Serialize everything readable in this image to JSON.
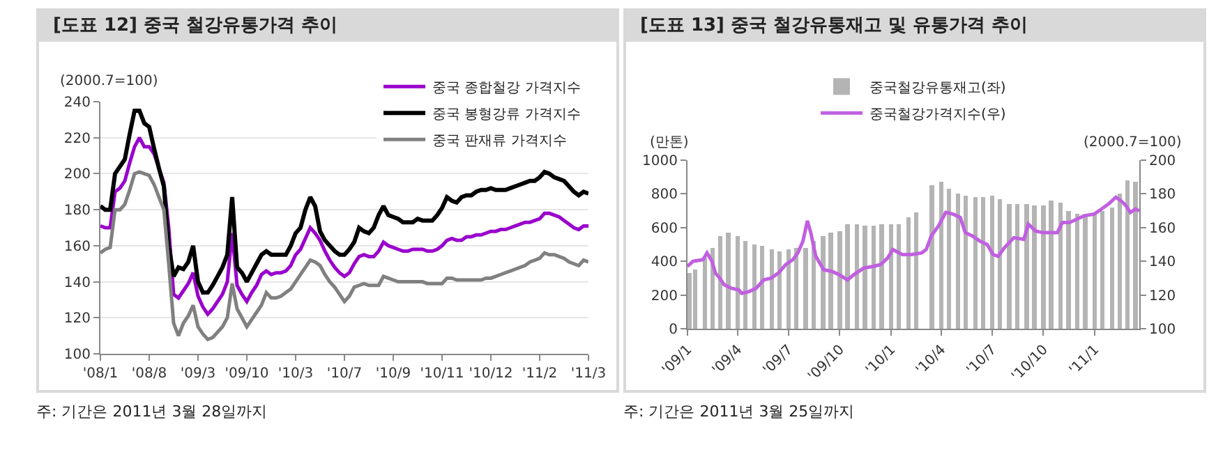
{
  "chart_data": [
    {
      "type": "line",
      "title": "[도표 12] 중국 철강유통가격 추이",
      "ylabel": "(2000.7=100)",
      "categories": [
        "'08/1",
        null,
        null,
        null,
        null,
        null,
        null,
        null,
        null,
        null,
        "'08/8",
        null,
        null,
        null,
        null,
        null,
        null,
        null,
        null,
        null,
        "'09/3",
        null,
        null,
        null,
        null,
        null,
        null,
        null,
        null,
        null,
        "'09/10",
        null,
        null,
        null,
        null,
        null,
        null,
        null,
        null,
        null,
        "'10/3",
        null,
        null,
        null,
        null,
        null,
        null,
        null,
        null,
        null,
        "'10/7",
        null,
        null,
        null,
        null,
        null,
        null,
        null,
        null,
        null,
        "'10/9",
        null,
        null,
        null,
        null,
        null,
        null,
        null,
        null,
        null,
        "'10/11",
        null,
        null,
        null,
        null,
        null,
        null,
        null,
        null,
        null,
        "'10/12",
        null,
        null,
        null,
        null,
        null,
        null,
        null,
        null,
        null,
        "'11/2",
        null,
        null,
        null,
        null,
        null,
        null,
        null,
        null,
        null,
        "'11/3"
      ],
      "ylim": [
        100,
        240
      ],
      "yticks": [
        100,
        120,
        140,
        160,
        180,
        200,
        220,
        240
      ],
      "grid": "y",
      "legend": "top right",
      "marker": "none",
      "line_style": "solid",
      "series": [
        {
          "name": "중국 종합철강 가격지수",
          "color": "#9900cc",
          "values": [
            171,
            170,
            170,
            190,
            192,
            196,
            206,
            215,
            220,
            215,
            215,
            211,
            203,
            195,
            170,
            133,
            131,
            135,
            139,
            145,
            132,
            126,
            122,
            125,
            129,
            133,
            140,
            167,
            138,
            133,
            129,
            134,
            138,
            144,
            146,
            144,
            145,
            145,
            146,
            149,
            155,
            158,
            164,
            170,
            167,
            163,
            157,
            152,
            148,
            145,
            143,
            145,
            150,
            154,
            155,
            154,
            154,
            157,
            162,
            160,
            159,
            158,
            157,
            157,
            158,
            158,
            158,
            157,
            157,
            158,
            160,
            163,
            164,
            163,
            163,
            165,
            165,
            166,
            166,
            167,
            168,
            168,
            169,
            169,
            170,
            171,
            172,
            173,
            173,
            174,
            175,
            178,
            178,
            177,
            176,
            174,
            172,
            170,
            169,
            171,
            171
          ]
        },
        {
          "name": "중국 봉형강류 가격지수",
          "color": "#000000",
          "values": [
            182,
            180,
            180,
            200,
            204,
            208,
            222,
            235,
            235,
            228,
            226,
            214,
            203,
            193,
            160,
            143,
            148,
            147,
            151,
            160,
            140,
            134,
            134,
            138,
            143,
            148,
            155,
            187,
            148,
            145,
            140,
            145,
            150,
            155,
            157,
            155,
            155,
            155,
            155,
            160,
            167,
            170,
            180,
            187,
            182,
            168,
            163,
            160,
            157,
            155,
            155,
            158,
            162,
            170,
            168,
            167,
            170,
            177,
            182,
            177,
            176,
            175,
            173,
            173,
            173,
            175,
            174,
            174,
            174,
            177,
            181,
            187,
            185,
            184,
            187,
            188,
            188,
            190,
            191,
            191,
            192,
            191,
            191,
            191,
            192,
            193,
            194,
            195,
            196,
            196,
            198,
            201,
            200,
            198,
            197,
            196,
            193,
            190,
            188,
            190,
            189
          ]
        },
        {
          "name": "중국 판재류 가격지수",
          "color": "#808080",
          "values": [
            156,
            158,
            159,
            180,
            180,
            183,
            191,
            200,
            201,
            200,
            199,
            194,
            187,
            180,
            150,
            117,
            110,
            117,
            121,
            127,
            115,
            111,
            108,
            109,
            112,
            115,
            120,
            139,
            125,
            120,
            115,
            119,
            123,
            127,
            134,
            131,
            131,
            132,
            134,
            136,
            140,
            144,
            148,
            152,
            151,
            149,
            144,
            140,
            137,
            133,
            129,
            132,
            137,
            138,
            139,
            138,
            138,
            138,
            143,
            142,
            141,
            140,
            140,
            140,
            140,
            140,
            140,
            139,
            139,
            139,
            139,
            142,
            142,
            141,
            141,
            141,
            141,
            141,
            141,
            142,
            142,
            143,
            144,
            145,
            146,
            147,
            148,
            149,
            151,
            152,
            153,
            156,
            155,
            155,
            154,
            153,
            151,
            150,
            149,
            152,
            151
          ]
        }
      ],
      "annotations": [
        "주: 기간은 2011년 3월 28일까지"
      ]
    },
    {
      "type": "bar",
      "title": "[도표 13] 중국 철강유통재고 및 유통가격 추이",
      "ylabel": "(만톤)",
      "y2label": "(2000.7=100)",
      "xlim": [
        "2009-01-01",
        "2011-03-22"
      ],
      "xticks": [
        {
          "value": "2009-01-01",
          "label": "'09/1"
        },
        {
          "value": "2009-04-01",
          "label": "'09/4"
        },
        {
          "value": "2009-07-01",
          "label": "'09/7"
        },
        {
          "value": "2009-10-01",
          "label": "'09/10"
        },
        {
          "value": "2010-01-01",
          "label": "'10/1"
        },
        {
          "value": "2010-04-01",
          "label": "'10/4"
        },
        {
          "value": "2010-07-01",
          "label": "'10/7"
        },
        {
          "value": "2010-10-01",
          "label": "'10/10"
        },
        {
          "value": "2011-01-01",
          "label": "'11/1"
        }
      ],
      "ylim": [
        0,
        1000
      ],
      "yticks": [
        0,
        200,
        400,
        600,
        800,
        1000
      ],
      "y2lim": [
        100,
        200
      ],
      "y2ticks": [
        100,
        120,
        140,
        160,
        180,
        200
      ],
      "legend": "top",
      "series": [
        {
          "name": "중국철강유통재고(좌)",
          "color": "#b4b4b4",
          "x": [
            "2009-01-05",
            "2009-01-15",
            "2009-02-01",
            "2009-02-15",
            "2009-03-01",
            "2009-03-15",
            "2009-04-01",
            "2009-04-15",
            "2009-05-01",
            "2009-05-15",
            "2009-06-01",
            "2009-06-15",
            "2009-07-01",
            "2009-07-15",
            "2009-08-01",
            "2009-08-15",
            "2009-09-01",
            "2009-09-15",
            "2009-10-01",
            "2009-10-15",
            "2009-11-01",
            "2009-11-15",
            "2009-12-01",
            "2009-12-15",
            "2010-01-01",
            "2010-01-15",
            "2010-02-01",
            "2010-02-15",
            "2010-03-01",
            "2010-03-15",
            "2010-04-01",
            "2010-04-15",
            "2010-05-01",
            "2010-05-15",
            "2010-06-01",
            "2010-06-15",
            "2010-07-01",
            "2010-07-15",
            "2010-08-01",
            "2010-08-15",
            "2010-09-01",
            "2010-09-15",
            "2010-10-01",
            "2010-10-15",
            "2010-11-01",
            "2010-11-15",
            "2010-12-01",
            "2010-12-15",
            "2011-01-01",
            "2011-01-15",
            "2011-02-01",
            "2011-02-15",
            "2011-03-01",
            "2011-03-15"
          ],
          "values": [
            330,
            350,
            420,
            480,
            550,
            570,
            550,
            520,
            500,
            490,
            470,
            460,
            470,
            480,
            480,
            520,
            550,
            570,
            580,
            620,
            620,
            610,
            610,
            620,
            620,
            620,
            660,
            690,
            null,
            850,
            870,
            830,
            800,
            790,
            780,
            780,
            790,
            770,
            740,
            740,
            740,
            730,
            730,
            760,
            750,
            700,
            680,
            670,
            680,
            700,
            720,
            800,
            880,
            870
          ]
        },
        {
          "name": "중국철강가격지수(우)",
          "type": "line",
          "axis": "y2",
          "color": "#c060e0",
          "x": [
            "2009-01-01",
            "2009-01-11",
            "2009-01-29",
            "2009-02-05",
            "2009-02-14",
            "2009-02-20",
            "2009-02-28",
            "2009-03-08",
            "2009-03-21",
            "2009-04-03",
            "2009-04-08",
            "2009-04-21",
            "2009-05-04",
            "2009-05-18",
            "2009-05-31",
            "2009-06-13",
            "2009-06-26",
            "2009-07-09",
            "2009-07-18",
            "2009-07-27",
            "2009-08-04",
            "2009-08-10",
            "2009-08-19",
            "2009-09-02",
            "2009-09-17",
            "2009-09-30",
            "2009-10-15",
            "2009-10-26",
            "2009-11-13",
            "2009-11-30",
            "2009-12-13",
            "2009-12-26",
            "2010-01-04",
            "2010-01-21",
            "2010-02-07",
            "2010-02-25",
            "2010-03-05",
            "2010-03-14",
            "2010-03-27",
            "2010-04-09",
            "2010-04-22",
            "2010-05-05",
            "2010-05-14",
            "2010-05-27",
            "2010-06-09",
            "2010-06-22",
            "2010-07-03",
            "2010-07-12",
            "2010-07-23",
            "2010-08-09",
            "2010-08-27",
            "2010-09-04",
            "2010-09-17",
            "2010-09-30",
            "2010-10-13",
            "2010-10-26",
            "2010-11-04",
            "2010-11-17",
            "2010-11-30",
            "2010-12-13",
            "2010-12-31",
            "2011-01-13",
            "2011-01-26",
            "2011-02-08",
            "2011-02-17",
            "2011-02-26",
            "2011-03-06",
            "2011-03-15",
            "2011-03-22"
          ],
          "values": [
            137,
            140,
            141,
            145,
            140,
            133,
            130,
            126,
            124,
            123,
            121,
            122,
            124,
            129,
            130,
            133,
            138,
            141,
            145,
            152,
            164,
            157,
            143,
            135,
            134,
            132,
            129,
            132,
            136,
            137,
            138,
            142,
            147,
            144,
            144,
            145,
            147,
            155,
            161,
            169,
            168,
            166,
            157,
            155,
            152,
            150,
            144,
            143,
            148,
            154,
            153,
            162,
            158,
            157,
            157,
            157,
            163,
            163,
            165,
            167,
            168,
            171,
            174,
            178,
            176,
            173,
            169,
            171,
            170
          ]
        }
      ],
      "annotations": [
        "주: 기간은 2011년 3월 25일까지"
      ]
    }
  ]
}
